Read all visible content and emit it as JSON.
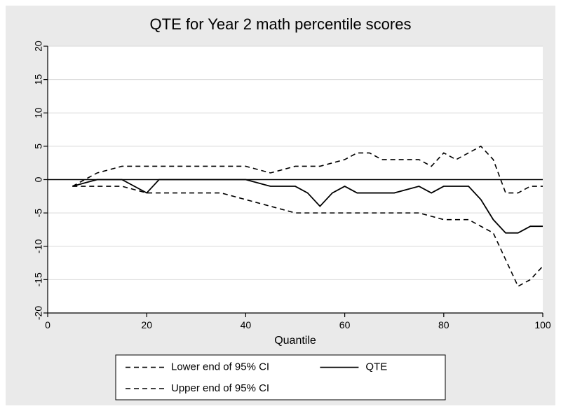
{
  "chart": {
    "type": "line",
    "title": "QTE for Year 2 math percentile scores",
    "title_fontsize": 22,
    "title_color": "#000000",
    "background_color": "#eaeaea",
    "plot_background_color": "#ffffff",
    "xlabel": "Quantile",
    "xlabel_fontsize": 16,
    "xlim": [
      0,
      100
    ],
    "xtick_step": 20,
    "xticks": [
      0,
      20,
      40,
      60,
      80,
      100
    ],
    "ylim": [
      -20,
      20
    ],
    "ytick_step": 5,
    "yticks": [
      -20,
      -15,
      -10,
      -5,
      0,
      5,
      10,
      15,
      20
    ],
    "tick_fontsize": 14,
    "tick_color": "#000000",
    "tick_length": 6,
    "axis_color": "#000000",
    "axis_width": 1.2,
    "grid_color": "#d9d9d9",
    "grid_width": 1,
    "zero_line_color": "#000000",
    "zero_line_width": 1.4,
    "series": [
      {
        "name": "lower",
        "label": "Lower end of 95% CI",
        "color": "#000000",
        "line_width": 1.6,
        "dash": "7,5",
        "x": [
          5,
          10,
          15,
          20,
          25,
          30,
          35,
          40,
          45,
          50,
          55,
          60,
          65,
          70,
          75,
          80,
          85,
          90,
          92.5,
          95,
          97.5,
          100
        ],
        "y": [
          -1,
          -1,
          -1,
          -2,
          -2,
          -2,
          -2,
          -3,
          -4,
          -5,
          -5,
          -5,
          -5,
          -5,
          -5,
          -6,
          -6,
          -8,
          -12,
          -16,
          -15,
          -13
        ]
      },
      {
        "name": "qte",
        "label": "QTE",
        "color": "#000000",
        "line_width": 1.8,
        "dash": "",
        "x": [
          5,
          10,
          15,
          20,
          22.5,
          25,
          30,
          35,
          40,
          45,
          50,
          52.5,
          55,
          57.5,
          60,
          62.5,
          65,
          70,
          75,
          77.5,
          80,
          85,
          87.5,
          90,
          92.5,
          95,
          97.5,
          100
        ],
        "y": [
          -1,
          0,
          0,
          -2,
          0,
          0,
          0,
          0,
          0,
          -1,
          -1,
          -2,
          -4,
          -2,
          -1,
          -2,
          -2,
          -2,
          -1,
          -2,
          -1,
          -1,
          -3,
          -6,
          -8,
          -8,
          -7,
          -7
        ]
      },
      {
        "name": "upper",
        "label": "Upper end of 95% CI",
        "color": "#000000",
        "line_width": 1.6,
        "dash": "7,5",
        "x": [
          5,
          10,
          15,
          20,
          25,
          30,
          35,
          40,
          45,
          50,
          55,
          60,
          62.5,
          65,
          67.5,
          70,
          75,
          77.5,
          80,
          82.5,
          85,
          87.5,
          90,
          92.5,
          95,
          97.5,
          100
        ],
        "y": [
          -1,
          1,
          2,
          2,
          2,
          2,
          2,
          2,
          1,
          2,
          2,
          3,
          4,
          4,
          3,
          3,
          3,
          2,
          4,
          3,
          4,
          5,
          3,
          -2,
          -2,
          -1,
          -1
        ]
      }
    ],
    "legend": {
      "border_color": "#000000",
      "border_width": 1,
      "background": "#ffffff",
      "fontsize": 15,
      "items": [
        {
          "series": "lower",
          "label": "Lower end of 95% CI"
        },
        {
          "series": "qte",
          "label": "QTE"
        },
        {
          "series": "upper",
          "label": "Upper end of 95% CI"
        }
      ]
    }
  }
}
